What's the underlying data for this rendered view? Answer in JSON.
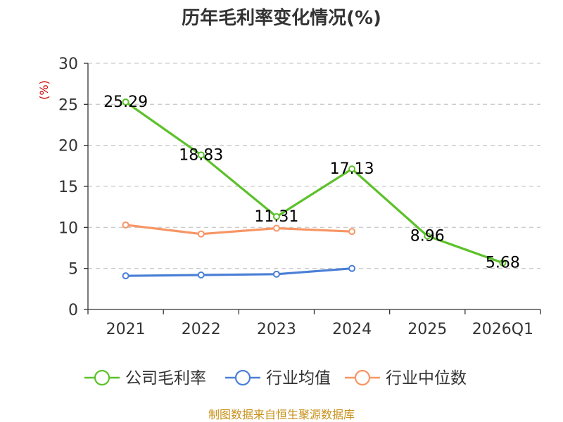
{
  "title": "历年毛利率变化情况(%)",
  "unit_label": "(%)",
  "source": "制图数据来自恒生聚源数据库",
  "chart_data": {
    "type": "line",
    "title": "历年毛利率变化情况(%)",
    "ylabel": "(%)",
    "xlabel": "",
    "categories": [
      "2021",
      "2022",
      "2023",
      "2024",
      "2025",
      "2026Q1"
    ],
    "ylim": [
      0,
      30
    ],
    "yticks": [
      0,
      5,
      10,
      15,
      20,
      25,
      30
    ],
    "grid": true,
    "legend_position": "bottom",
    "series": [
      {
        "name": "公司毛利率",
        "color": "#5cc12a",
        "values": [
          25.29,
          18.83,
          11.31,
          17.13,
          8.96,
          5.68
        ],
        "labels": [
          "25.29",
          "18.83",
          "11.31",
          "17.13",
          "8.96",
          "5.68"
        ]
      },
      {
        "name": "行业均值",
        "color": "#4a7fd6",
        "values": [
          4.1,
          4.2,
          4.3,
          5.0,
          null,
          null
        ]
      },
      {
        "name": "行业中位数",
        "color": "#f79564",
        "values": [
          10.3,
          9.2,
          9.9,
          9.5,
          null,
          null
        ]
      }
    ]
  }
}
